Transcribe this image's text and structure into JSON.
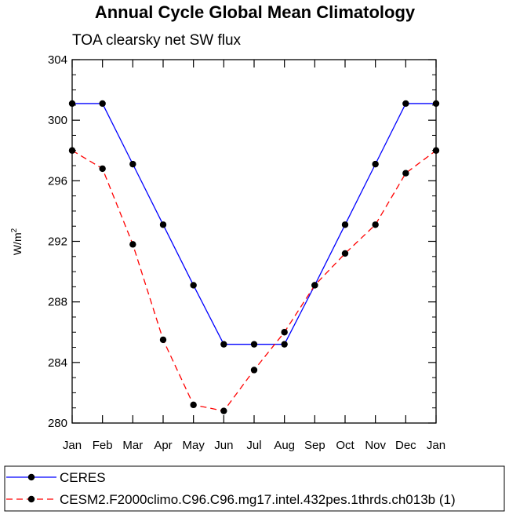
{
  "chart_data": {
    "type": "line",
    "title": "Annual Cycle Global Mean Climatology",
    "subtitle": "TOA clearsky net SW flux",
    "xlabel": "",
    "ylabel": "W/m",
    "ylabel_superscript": "2",
    "ylim": [
      280,
      304
    ],
    "yticks": [
      280,
      284,
      288,
      292,
      296,
      300,
      304
    ],
    "ytick_labels": [
      "280",
      "284",
      "288",
      "292",
      "296",
      "300",
      "304"
    ],
    "categories": [
      "Jan",
      "Feb",
      "Mar",
      "Apr",
      "May",
      "Jun",
      "Jul",
      "Aug",
      "Sep",
      "Oct",
      "Nov",
      "Dec",
      "Jan"
    ],
    "series": [
      {
        "name": "CERES",
        "color": "#0000ff",
        "dash": "solid",
        "values": [
          301.1,
          301.1,
          297.1,
          293.1,
          289.1,
          285.2,
          285.2,
          285.2,
          289.1,
          293.1,
          297.1,
          301.1,
          301.1
        ]
      },
      {
        "name": "CESM2.F2000climo.C96.C96.mg17.intel.432pes.1thrds.ch013b (1)",
        "color": "#ff0000",
        "dash": "dashed",
        "values": [
          298.0,
          296.8,
          291.8,
          285.5,
          281.2,
          280.8,
          283.5,
          286.0,
          289.1,
          291.2,
          293.1,
          296.5,
          298.0
        ]
      }
    ],
    "legend_position": "bottom"
  }
}
